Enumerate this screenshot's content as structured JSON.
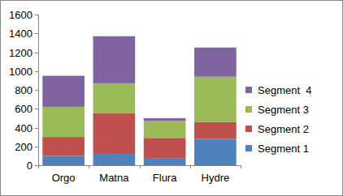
{
  "chart_data": {
    "type": "bar",
    "stacked": true,
    "grid": false,
    "legend": "right",
    "categories": [
      "Orgo",
      "Matna",
      "Flura",
      "Hydre"
    ],
    "series": [
      {
        "name": "Segment 1",
        "color": "#4f81bd",
        "values": [
          100,
          120,
          70,
          280
        ]
      },
      {
        "name": "Segment 2",
        "color": "#c0504d",
        "values": [
          200,
          430,
          220,
          180
        ]
      },
      {
        "name": "Segment 3",
        "color": "#9bbb59",
        "values": [
          320,
          320,
          180,
          480
        ]
      },
      {
        "name": "Segment  4",
        "color": "#8064a2",
        "values": [
          330,
          500,
          30,
          310
        ]
      }
    ],
    "ylim": [
      0,
      1600
    ],
    "yticks": [
      0,
      200,
      400,
      600,
      800,
      1000,
      1200,
      1400,
      1600
    ]
  }
}
